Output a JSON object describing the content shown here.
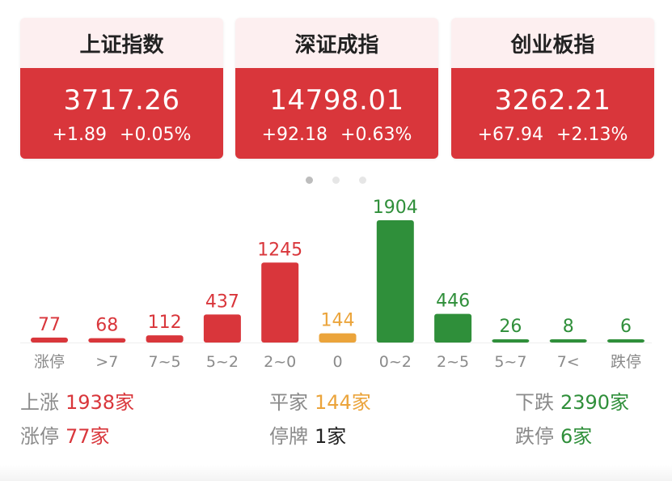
{
  "indices": [
    {
      "name": "上证指数",
      "value": "3717.26",
      "change": "+1.89",
      "pct": "+0.05%"
    },
    {
      "name": "深证成指",
      "value": "14798.01",
      "change": "+92.18",
      "pct": "+0.63%"
    },
    {
      "name": "创业板指",
      "value": "3262.21",
      "change": "+67.94",
      "pct": "+2.13%"
    }
  ],
  "pager": {
    "count": 3,
    "active": 0
  },
  "chart_data": {
    "type": "bar",
    "categories": [
      "涨停",
      ">7",
      "7~5",
      "5~2",
      "2~0",
      "0",
      "0~2",
      "2~5",
      "5~7",
      "7<",
      "跌停"
    ],
    "values": [
      77,
      68,
      112,
      437,
      1245,
      144,
      1904,
      446,
      26,
      8,
      6
    ],
    "ylim": [
      0,
      1904
    ],
    "bar_colors": [
      "#d9363b",
      "#d9363b",
      "#d9363b",
      "#d9363b",
      "#d9363b",
      "#eba43b",
      "#2f8f3a",
      "#2f8f3a",
      "#2f8f3a",
      "#2f8f3a",
      "#2f8f3a"
    ],
    "grid": false
  },
  "summary": {
    "up": {
      "label": "上涨",
      "value": "1938家"
    },
    "limit_up": {
      "label": "涨停",
      "value": "77家"
    },
    "flat": {
      "label": "平家",
      "value": "144家"
    },
    "suspended": {
      "label": "停牌",
      "value": "1家"
    },
    "down": {
      "label": "下跌",
      "value": "2390家"
    },
    "limit_down": {
      "label": "跌停",
      "value": "6家"
    }
  },
  "colors": {
    "red": "#d9363b",
    "orange": "#eba43b",
    "green": "#2f8f3a",
    "card_head": "#fdeff0",
    "label_gray": "#8a8a8a"
  }
}
